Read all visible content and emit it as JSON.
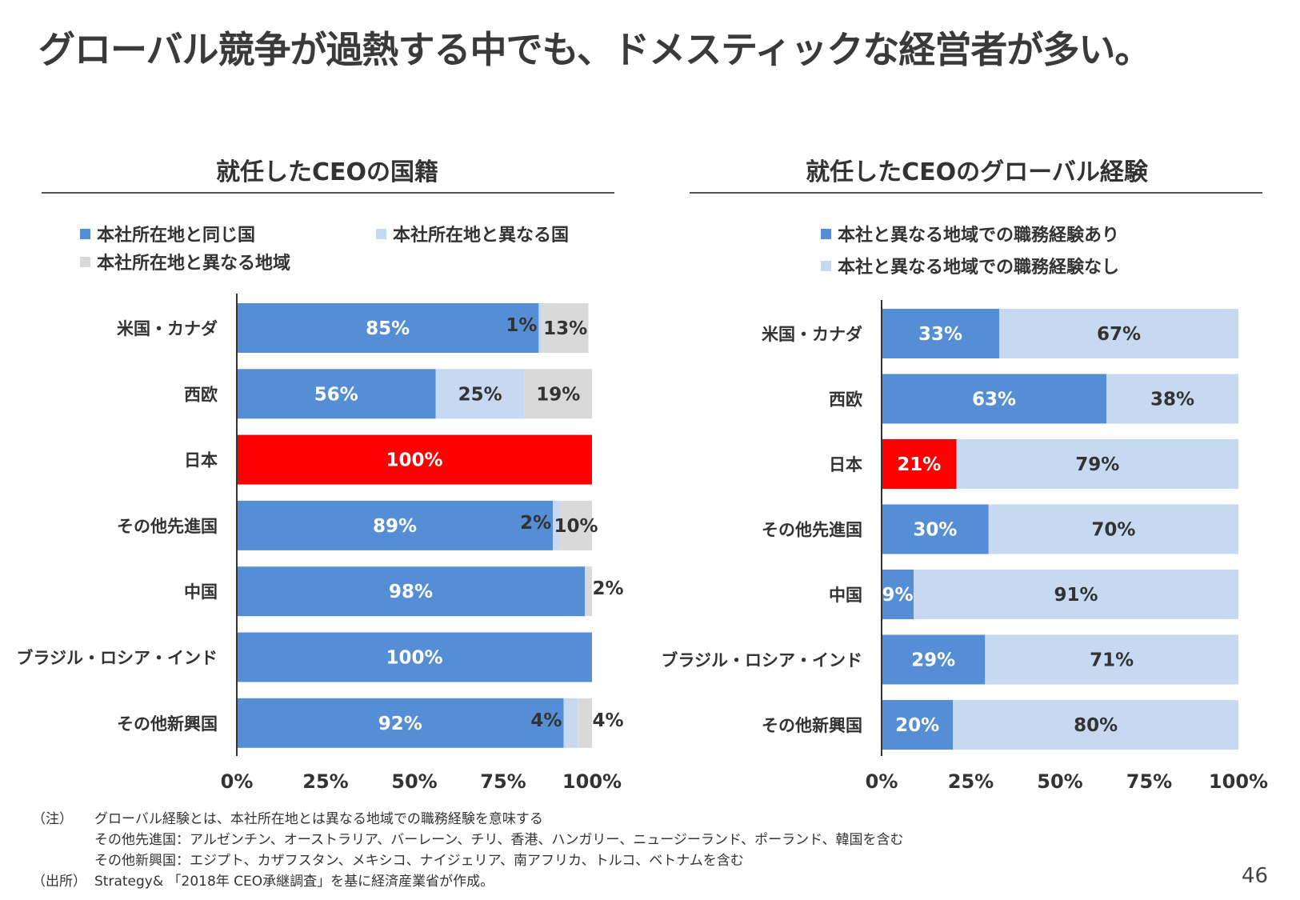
{
  "title": "グローバル競争が過熱する中でも、ドメスティックな経営者が多い。",
  "page_number": "46",
  "colors": {
    "dark_blue": "#558ed5",
    "light_blue": "#c6d9f1",
    "gray": "#d9d9d9",
    "red": "#ff0000"
  },
  "notes": {
    "note_tag": "（注）",
    "note_1": "グローバル経験とは、本社所在地とは異なる地域での職務経験を意味する",
    "note_2": "その他先進国：アルゼンチン、オーストラリア、バーレーン、チリ、香港、ハンガリー、ニュージーランド、ポーランド、韓国を含む",
    "note_3": "その他新興国：エジプト、カザフスタン、メキシコ、ナイジェリア、南アフリカ、トルコ、ベトナムを含む",
    "source_tag": "（出所）",
    "source": "Strategy& 「2018年 CEO承継調査」を基に経済産業省が作成。"
  },
  "chart_data": [
    {
      "type": "bar",
      "orientation": "horizontal",
      "stacked": true,
      "title": "就任したCEOの国籍",
      "categories": [
        "米国・カナダ",
        "西欧",
        "日本",
        "その他先進国",
        "中国",
        "ブラジル・ロシア・インド",
        "その他新興国"
      ],
      "series": [
        {
          "name": "本社所在地と同じ国",
          "color": "#558ed5",
          "values": [
            85,
            56,
            100,
            89,
            98,
            100,
            92
          ]
        },
        {
          "name": "本社所在地と異なる国",
          "color": "#c6d9f1",
          "values": [
            1,
            25,
            0,
            2,
            0,
            0,
            4
          ]
        },
        {
          "name": "本社所在地と異なる地域",
          "color": "#d9d9d9",
          "values": [
            13,
            19,
            0,
            10,
            2,
            0,
            4
          ]
        }
      ],
      "highlight": {
        "category": "日本",
        "color": "#ff0000"
      },
      "xlim": [
        0,
        100
      ],
      "xticks": [
        "0%",
        "25%",
        "50%",
        "75%",
        "100%"
      ],
      "data_labels": [
        [
          "85%",
          "1%",
          "13%"
        ],
        [
          "56%",
          "25%",
          "19%"
        ],
        [
          "100%",
          "",
          ""
        ],
        [
          "89%",
          "2%",
          "10%"
        ],
        [
          "98%",
          "",
          "2%"
        ],
        [
          "100%",
          "",
          ""
        ],
        [
          "92%",
          "4%",
          "4%"
        ]
      ],
      "legend": {
        "position": "top",
        "rows": [
          [
            "本社所在地と同じ国",
            "本社所在地と異なる国"
          ],
          [
            "本社所在地と異なる地域"
          ]
        ]
      }
    },
    {
      "type": "bar",
      "orientation": "horizontal",
      "stacked": true,
      "title": "就任したCEOのグローバル経験",
      "categories": [
        "米国・カナダ",
        "西欧",
        "日本",
        "その他先進国",
        "中国",
        "ブラジル・ロシア・インド",
        "その他新興国"
      ],
      "series": [
        {
          "name": "本社と異なる地域での職務経験あり",
          "color": "#558ed5",
          "values": [
            33,
            63,
            21,
            30,
            9,
            29,
            20
          ]
        },
        {
          "name": "本社と異なる地域での職務経験なし",
          "color": "#c6d9f1",
          "values": [
            67,
            38,
            79,
            70,
            91,
            71,
            80
          ]
        }
      ],
      "highlight": {
        "category": "日本",
        "color": "#ff0000"
      },
      "xlim": [
        0,
        100
      ],
      "xticks": [
        "0%",
        "25%",
        "50%",
        "75%",
        "100%"
      ],
      "data_labels": [
        [
          "33%",
          "67%"
        ],
        [
          "63%",
          "38%"
        ],
        [
          "21%",
          "79%"
        ],
        [
          "30%",
          "70%"
        ],
        [
          "9%",
          "91%"
        ],
        [
          "29%",
          "71%"
        ],
        [
          "20%",
          "80%"
        ]
      ],
      "legend": {
        "position": "top",
        "rows": [
          [
            "本社と異なる地域での職務経験あり"
          ],
          [
            "本社と異なる地域での職務経験なし"
          ]
        ]
      }
    }
  ]
}
